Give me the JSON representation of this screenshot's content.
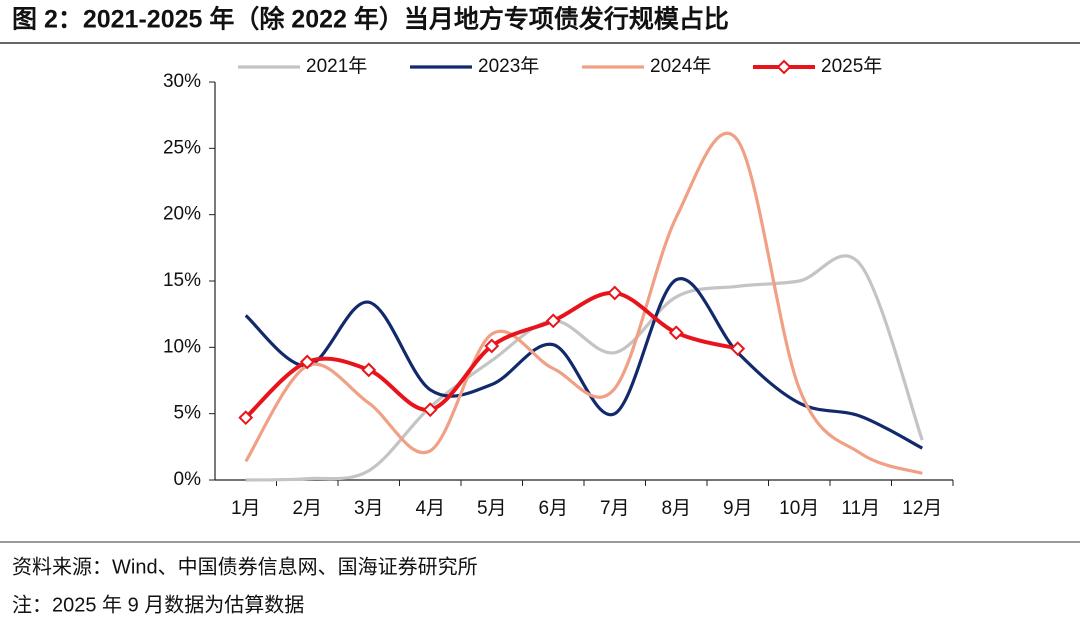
{
  "chart_data": {
    "type": "line",
    "title": "图 2：2021-2025 年（除 2022 年）当月地方专项债发行规模占比",
    "categories": [
      "1月",
      "2月",
      "3月",
      "4月",
      "5月",
      "6月",
      "7月",
      "8月",
      "9月",
      "10月",
      "11月",
      "12月"
    ],
    "series": [
      {
        "name": "2021年",
        "color": "#c4c4c4",
        "values": [
          0,
          0.1,
          0.7,
          5.5,
          9.0,
          12.0,
          9.6,
          13.8,
          14.6,
          15.0,
          16.2,
          3.0
        ]
      },
      {
        "name": "2023年",
        "color": "#12296b",
        "values": [
          12.4,
          8.6,
          13.4,
          6.8,
          7.2,
          10.2,
          5.0,
          15.1,
          9.6,
          5.8,
          4.8,
          2.4
        ]
      },
      {
        "name": "2024年",
        "color": "#f0a084",
        "values": [
          1.4,
          8.6,
          5.8,
          2.2,
          11.0,
          8.4,
          6.9,
          19.8,
          25.6,
          6.9,
          2.0,
          0.5
        ]
      },
      {
        "name": "2025年",
        "color": "#e8141b",
        "values": [
          4.7,
          8.9,
          8.3,
          5.3,
          10.1,
          12.0,
          14.1,
          11.1,
          9.9,
          null,
          null,
          null
        ],
        "markers": true
      }
    ],
    "ylim": [
      0,
      30
    ],
    "yticks": [
      {
        "value": 0,
        "label": "0%"
      },
      {
        "value": 5,
        "label": "5%"
      },
      {
        "value": 10,
        "label": "10%"
      },
      {
        "value": 15,
        "label": "15%"
      },
      {
        "value": 20,
        "label": "20%"
      },
      {
        "value": 25,
        "label": "25%"
      },
      {
        "value": 30,
        "label": "30%"
      }
    ],
    "source": "资料来源：Wind、中国债券信息网、国海证券研究所",
    "note": "注：2025 年 9 月数据为估算数据"
  }
}
